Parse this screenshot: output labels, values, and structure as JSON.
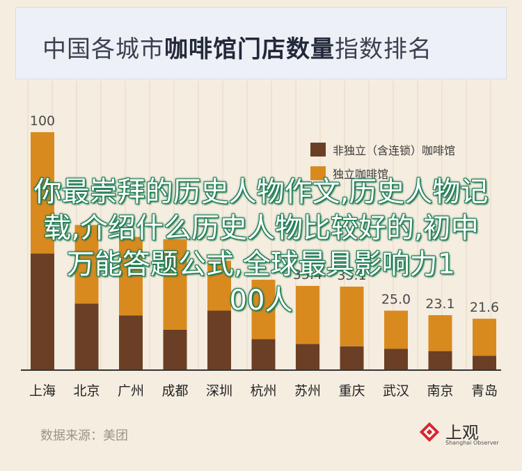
{
  "title": {
    "part1": "中国各城市",
    "part2": "咖啡馆门店数量",
    "part3": "指数排名"
  },
  "source": "数据来源：美团",
  "logo": {
    "name": "上观",
    "sub": "Shanghai Observer"
  },
  "overlay_text": [
    "你最崇拜的历史人物作文,历史人物记",
    "载,介绍什么历史人物比较好的,初中",
    "万能答题公式,全球最具影响力1",
    "00人"
  ],
  "colors": {
    "non_independent": "#6b3f25",
    "independent": "#d98a1e",
    "grid": "#e6d8c4",
    "axis": "#333333"
  },
  "chart_data": {
    "type": "bar",
    "stacked": true,
    "categories": [
      "上海",
      "北京",
      "广州",
      "成都",
      "深圳",
      "杭州",
      "苏州",
      "重庆",
      "武汉",
      "南京",
      "青岛"
    ],
    "totals": [
      100,
      61.0,
      56.0,
      55.0,
      46.0,
      38.0,
      35.4,
      35.1,
      25.0,
      23.1,
      21.6
    ],
    "series": [
      {
        "name": "非独立（含连锁）咖啡馆",
        "values": [
          49.0,
          28.0,
          23.0,
          17.0,
          25.0,
          13.0,
          11.0,
          10.0,
          9.0,
          8.0,
          6.0
        ]
      },
      {
        "name": "独立咖啡馆",
        "values": [
          51.0,
          33.0,
          33.0,
          38.0,
          21.0,
          25.0,
          24.4,
          25.1,
          16.0,
          15.1,
          15.6
        ]
      }
    ],
    "total_labels": [
      "100",
      "",
      "",
      "",
      "",
      "",
      "35.4",
      "35.1",
      "25.0",
      "23.1",
      "21.6"
    ],
    "ylim": [
      0,
      100
    ],
    "grid": true,
    "legend_position": "top-right"
  }
}
